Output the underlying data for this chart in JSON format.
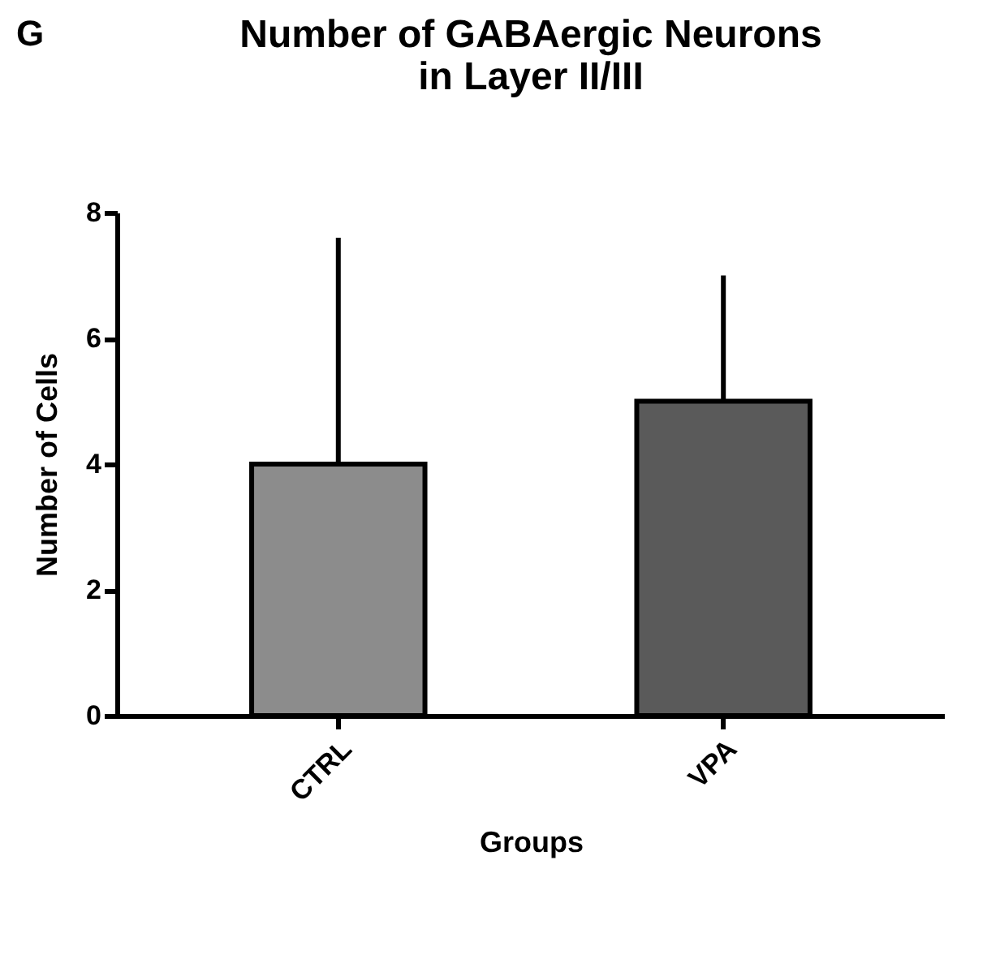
{
  "chart_data": {
    "type": "bar",
    "title": "Number of GABAergic Neurons\nin Layer II/III",
    "xlabel": "Groups",
    "ylabel": "Number of Cells",
    "annotations": [
      "G"
    ],
    "categories": [
      "CTRL",
      "VPA"
    ],
    "values": [
      4,
      5
    ],
    "colors": [
      "#8c8c8c",
      "#5a5a5a"
    ],
    "errors": [
      [
        4,
        7.6
      ],
      [
        5,
        7
      ]
    ],
    "ylim": [
      0,
      8
    ],
    "yticks": [
      0,
      2,
      4,
      6,
      8
    ],
    "grid": false
  }
}
